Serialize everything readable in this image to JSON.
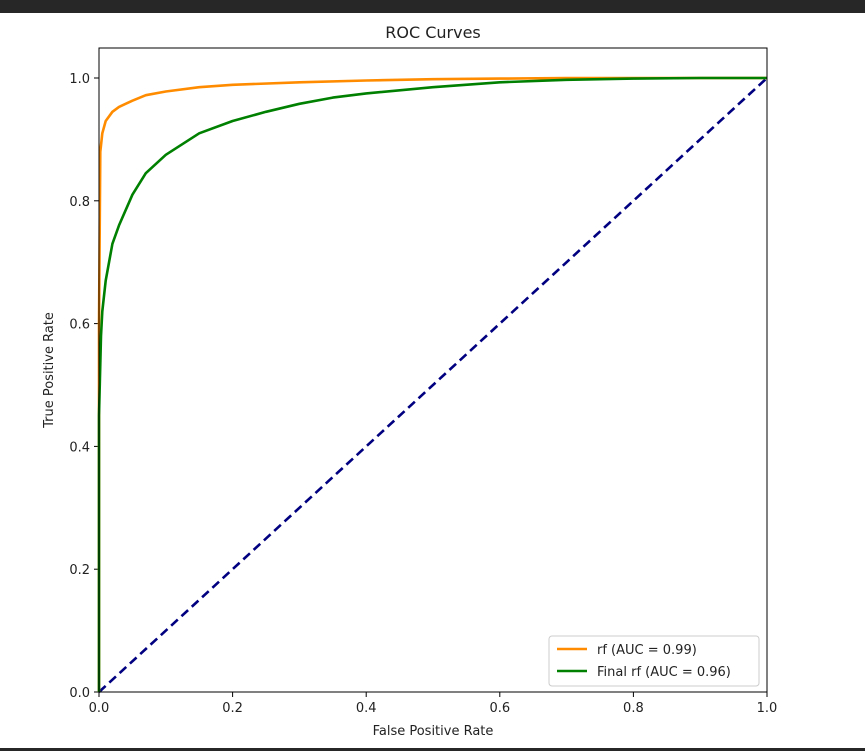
{
  "chart_data": {
    "type": "line",
    "title": "ROC Curves",
    "xlabel": "False Positive Rate",
    "ylabel": "True Positive Rate",
    "xlim": [
      0.0,
      1.0
    ],
    "ylim": [
      0.0,
      1.0
    ],
    "xticks": [
      "0.0",
      "0.2",
      "0.4",
      "0.6",
      "0.8",
      "1.0"
    ],
    "yticks": [
      "0.0",
      "0.2",
      "0.4",
      "0.6",
      "0.8",
      "1.0"
    ],
    "grid": false,
    "legend_position": "lower-right",
    "series": [
      {
        "name": "rf (AUC = 0.99)",
        "color": "#ff8c00",
        "style": "solid",
        "x": [
          0.0,
          0.0,
          0.002,
          0.005,
          0.01,
          0.02,
          0.03,
          0.05,
          0.07,
          0.1,
          0.15,
          0.2,
          0.3,
          0.4,
          0.5,
          0.6,
          0.7,
          0.8,
          0.9,
          1.0
        ],
        "y": [
          0.0,
          0.6,
          0.88,
          0.91,
          0.93,
          0.945,
          0.953,
          0.963,
          0.972,
          0.978,
          0.985,
          0.989,
          0.993,
          0.996,
          0.998,
          0.999,
          1.0,
          1.0,
          1.0,
          1.0
        ]
      },
      {
        "name": "Final rf (AUC = 0.96)",
        "color": "#008000",
        "style": "solid",
        "x": [
          0.0,
          0.0,
          0.003,
          0.005,
          0.01,
          0.02,
          0.03,
          0.05,
          0.07,
          0.1,
          0.15,
          0.2,
          0.25,
          0.3,
          0.35,
          0.4,
          0.5,
          0.6,
          0.7,
          0.8,
          0.9,
          1.0
        ],
        "y": [
          0.0,
          0.45,
          0.58,
          0.62,
          0.67,
          0.73,
          0.76,
          0.81,
          0.845,
          0.875,
          0.91,
          0.93,
          0.945,
          0.958,
          0.968,
          0.975,
          0.985,
          0.993,
          0.997,
          0.999,
          1.0,
          1.0
        ]
      },
      {
        "name": "",
        "color": "#000080",
        "style": "dashed",
        "x": [
          0.0,
          1.0
        ],
        "y": [
          0.0,
          1.0
        ]
      }
    ]
  }
}
